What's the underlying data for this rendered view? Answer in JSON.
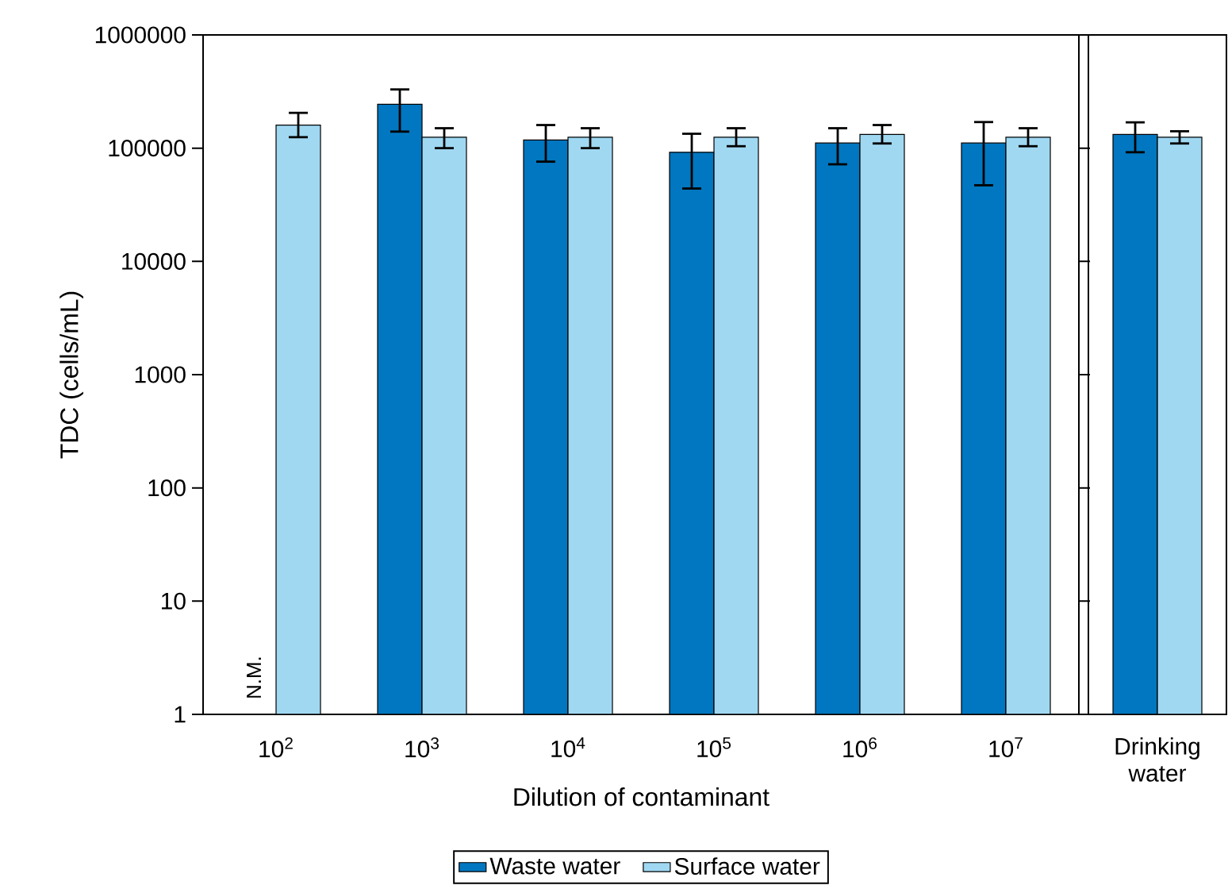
{
  "chart_data": [
    {
      "type": "bar",
      "xlabel": "Dilution of contaminant",
      "ylabel": "TDC (cells/mL)",
      "log": true,
      "legend": "bottom",
      "categories": [
        "10$^{2}$",
        "10$^{3}$",
        "10$^{4}$",
        "10$^{5}$",
        "10$^{6}$",
        "10$^{7}$"
      ],
      "ylim": [
        1,
        1000000
      ],
      "yticks": [
        1,
        10,
        100,
        1000,
        10000,
        100000,
        1000000
      ],
      "series": [
        {
          "name": "Waste water",
          "color": "#0077c0",
          "values": [
            null,
            244000,
            118000,
            92000,
            111000,
            111000
          ],
          "errors": [
            null,
            [
              140000,
              330000
            ],
            [
              76000,
              160000
            ],
            [
              44000,
              134000
            ],
            [
              72000,
              150000
            ],
            [
              47000,
              170000
            ]
          ]
        },
        {
          "name": "Surface water",
          "color": "#a0d8f2",
          "values": [
            160000,
            125000,
            125000,
            125000,
            132000,
            125000
          ],
          "errors": [
            [
              125000,
              205000
            ],
            [
              100000,
              150000
            ],
            [
              100000,
              150000
            ],
            [
              104000,
              150000
            ],
            [
              110000,
              160000
            ],
            [
              104000,
              150000
            ]
          ]
        }
      ],
      "annotations": [
        "N.M."
      ]
    },
    {
      "type": "bar",
      "log": true,
      "tick_labels": "x",
      "categories": [
        "Drinking water"
      ],
      "ylim": [
        1,
        1000000
      ],
      "series": [
        {
          "color": "#0077c0",
          "values": [
            132000
          ],
          "errors": [
            [
              92000,
              169000
            ]
          ]
        },
        {
          "color": "#a0d8f2",
          "values": [
            125000
          ],
          "errors": [
            [
              110000,
              141000
            ]
          ]
        }
      ]
    }
  ]
}
